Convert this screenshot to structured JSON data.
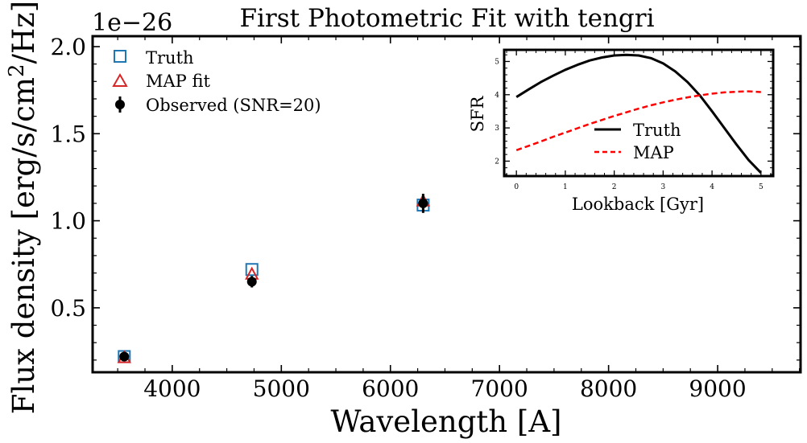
{
  "chart_data": [
    {
      "type": "scatter",
      "title": "First Photometric Fit with tengri",
      "xlabel": "Wavelength [A]",
      "ylabel_main": "Flux density [erg/s/cm",
      "ylabel_sup": "2",
      "ylabel_tail": "/Hz]",
      "offset_label": "1e−26",
      "xlim": [
        3270,
        9760
      ],
      "ylim": [
        0.13,
        2.06
      ],
      "xticks": [
        4000,
        5000,
        6000,
        7000,
        8000,
        9000
      ],
      "xtick_labels": [
        "4000",
        "5000",
        "6000",
        "7000",
        "8000",
        "9000"
      ],
      "yticks": [
        0.5,
        1.0,
        1.5,
        2.0
      ],
      "ytick_labels": [
        "0.5",
        "1.0",
        "1.5",
        "2.0"
      ],
      "legend_position": "top-left",
      "series": [
        {
          "name": "Truth",
          "marker": "open-square",
          "color": "#1f77b4",
          "x": [
            3560,
            4730,
            6300
          ],
          "y": [
            0.22,
            0.72,
            1.09
          ]
        },
        {
          "name": "MAP fit",
          "marker": "open-triangle",
          "color": "#d62728",
          "x": [
            3560,
            4730,
            6300
          ],
          "y": [
            0.21,
            0.69,
            1.11
          ]
        },
        {
          "name": "Observed (SNR=20)",
          "marker": "filled-circle-errorbar",
          "color": "#000000",
          "x": [
            3560,
            4730,
            6300
          ],
          "y": [
            0.22,
            0.65,
            1.1
          ],
          "yerr": [
            0.011,
            0.033,
            0.055
          ]
        }
      ]
    },
    {
      "type": "line",
      "xlabel": "Lookback [Gyr]",
      "ylabel": "SFR",
      "xlim": [
        -0.25,
        5.25
      ],
      "ylim": [
        1.55,
        5.35
      ],
      "xticks": [
        0,
        1,
        2,
        3,
        4,
        5
      ],
      "xtick_labels": [
        "0",
        "1",
        "2",
        "3",
        "4",
        "5"
      ],
      "yticks": [
        2,
        3,
        4,
        5
      ],
      "ytick_labels": [
        "2",
        "3",
        "4",
        "5"
      ],
      "legend_position": "lower-right",
      "series": [
        {
          "name": "Truth",
          "style": "solid",
          "color": "#000000",
          "x": [
            0,
            0.25,
            0.5,
            0.75,
            1,
            1.25,
            1.5,
            1.75,
            2,
            2.25,
            2.5,
            2.75,
            3,
            3.25,
            3.5,
            3.75,
            4,
            4.25,
            4.5,
            4.75,
            5
          ],
          "y": [
            3.93,
            4.16,
            4.38,
            4.57,
            4.75,
            4.9,
            5.03,
            5.12,
            5.18,
            5.2,
            5.18,
            5.1,
            4.94,
            4.7,
            4.38,
            3.98,
            3.5,
            3.0,
            2.5,
            2.03,
            1.65
          ]
        },
        {
          "name": "MAP",
          "style": "dashed",
          "color": "#ff0000",
          "x": [
            0,
            0.25,
            0.5,
            0.75,
            1,
            1.25,
            1.5,
            1.75,
            2,
            2.25,
            2.5,
            2.75,
            3,
            3.25,
            3.5,
            3.75,
            4,
            4.25,
            4.5,
            4.75,
            5
          ],
          "y": [
            2.33,
            2.46,
            2.59,
            2.73,
            2.86,
            2.99,
            3.12,
            3.24,
            3.36,
            3.47,
            3.58,
            3.68,
            3.77,
            3.85,
            3.92,
            3.98,
            4.03,
            4.07,
            4.09,
            4.1,
            4.08
          ]
        }
      ]
    }
  ]
}
